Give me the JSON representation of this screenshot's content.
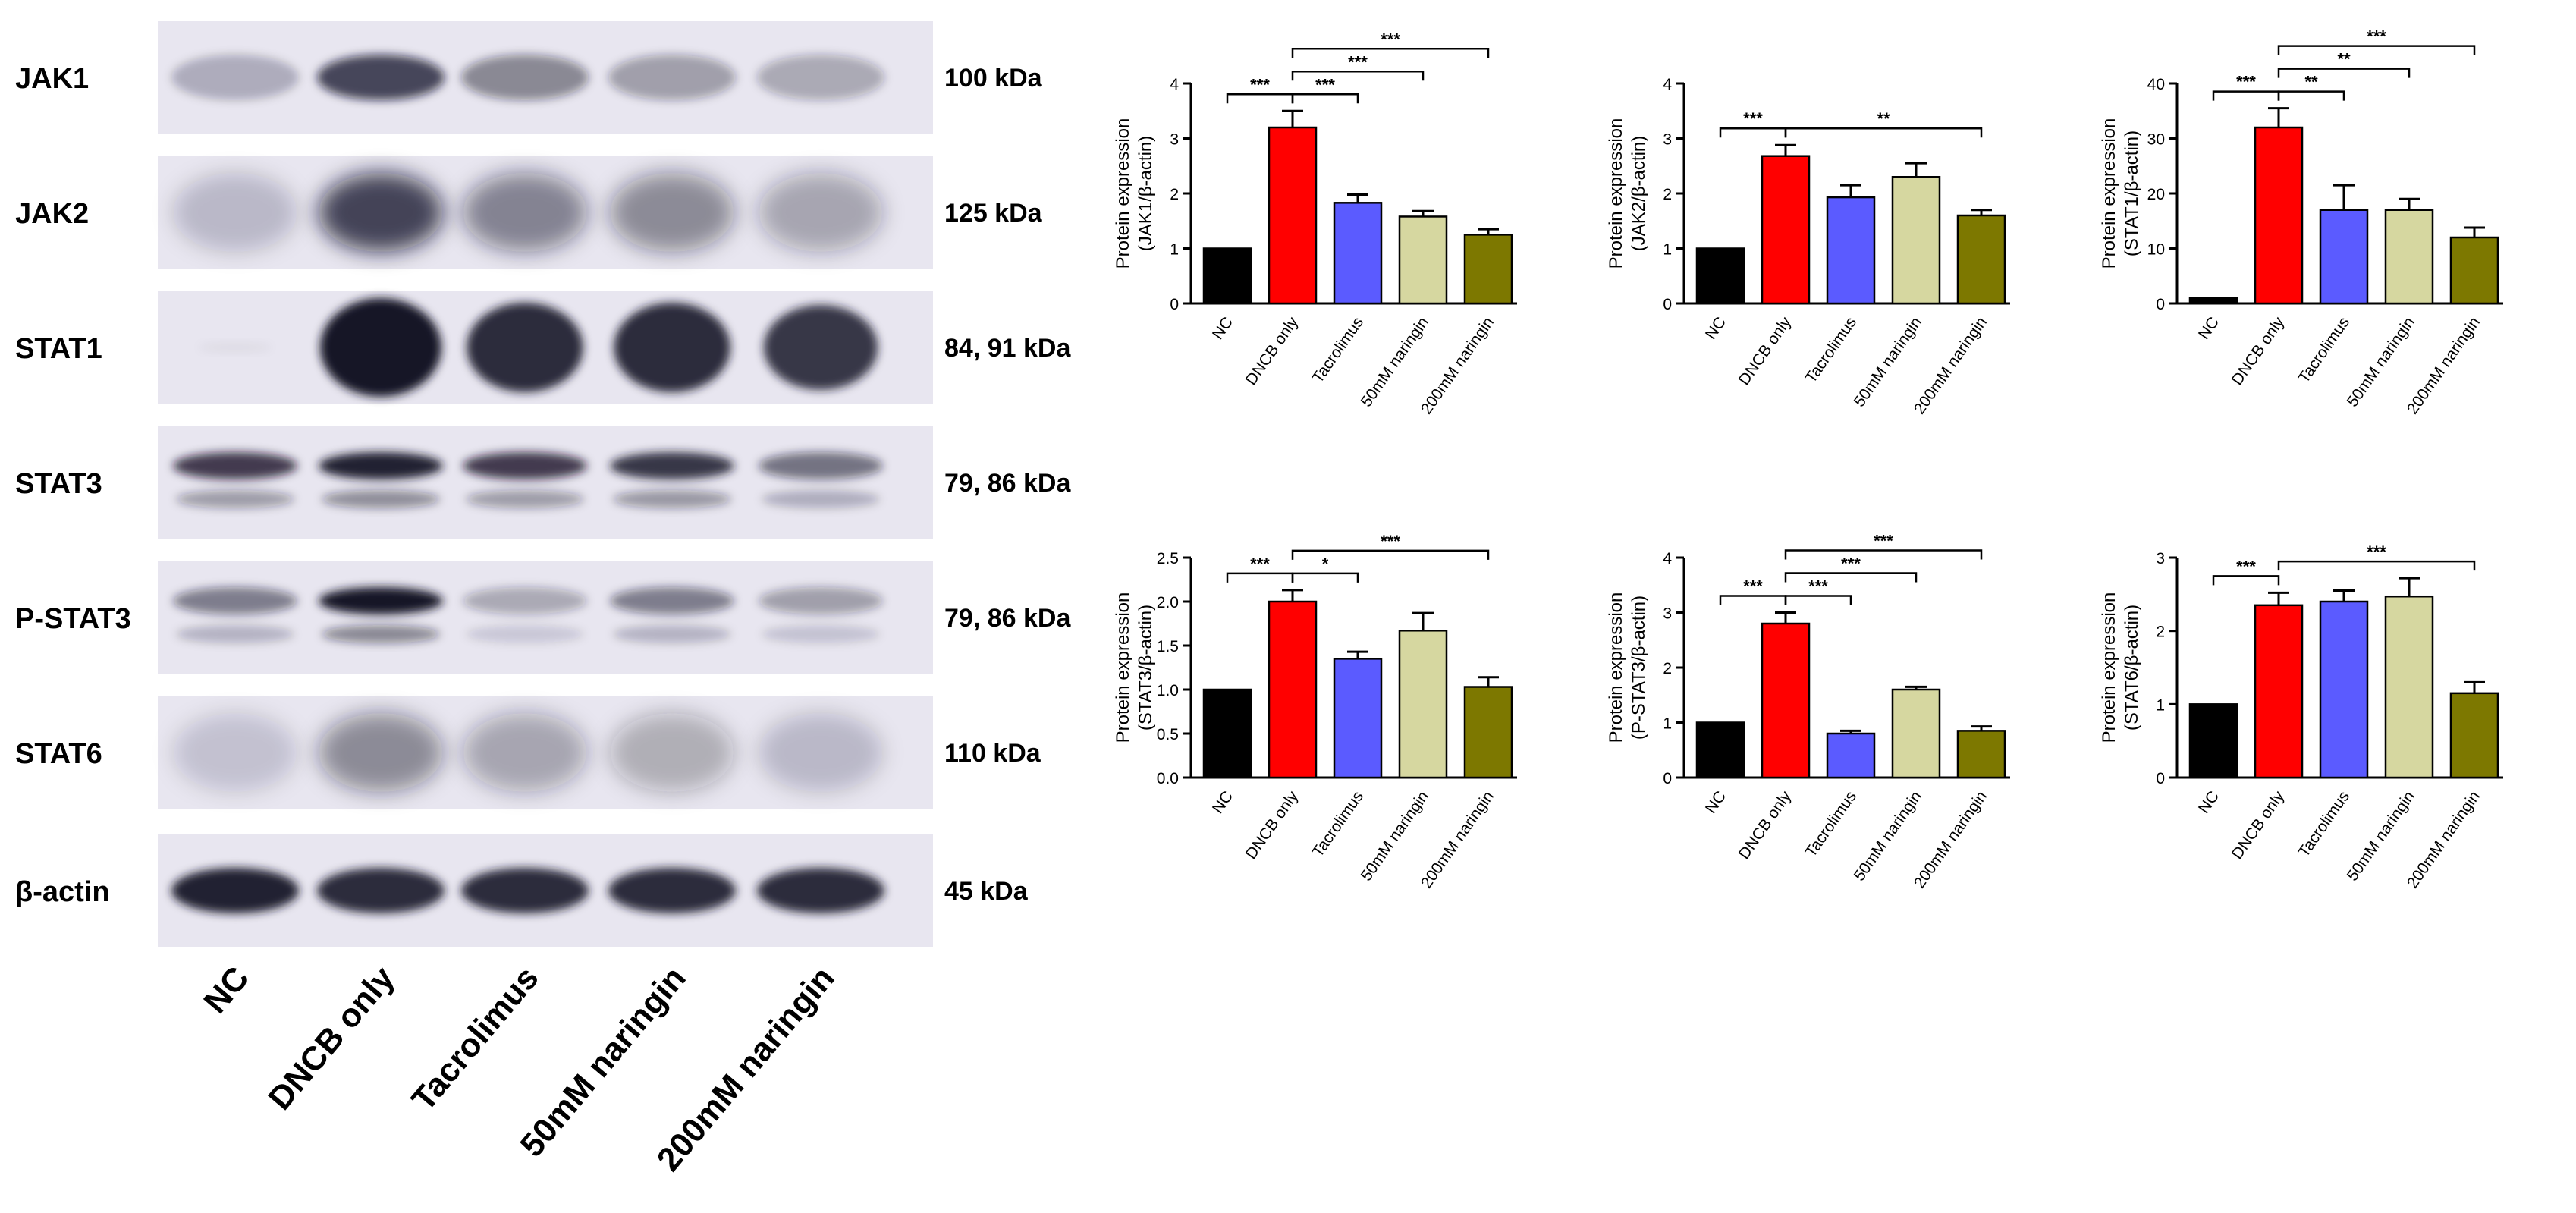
{
  "blot": {
    "lanes": [
      "NC",
      "DNCB only",
      "Tacrolimus",
      "50mM naringin",
      "200mM naringin"
    ],
    "rows": [
      {
        "name": "JAK1",
        "kda": "100 kDa",
        "intensity": [
          0.25,
          0.75,
          0.45,
          0.35,
          0.3
        ],
        "shape": "band"
      },
      {
        "name": "JAK2",
        "kda": "125 kDa",
        "intensity": [
          0.25,
          0.95,
          0.6,
          0.55,
          0.4
        ],
        "shape": "smear"
      },
      {
        "name": "STAT1",
        "kda": "84, 91 kDa",
        "intensity": [
          0.02,
          1.0,
          0.9,
          0.9,
          0.85
        ],
        "shape": "blob"
      },
      {
        "name": "STAT3",
        "kda": "79, 86 kDa",
        "intensity": [
          0.8,
          0.95,
          0.8,
          0.85,
          0.55
        ],
        "shape": "double"
      },
      {
        "name": "P-STAT3",
        "kda": "79, 86 kDa",
        "intensity": [
          0.5,
          1.0,
          0.3,
          0.5,
          0.35
        ],
        "shape": "double"
      },
      {
        "name": "STAT6",
        "kda": "110 kDa",
        "intensity": [
          0.2,
          0.55,
          0.4,
          0.35,
          0.25
        ],
        "shape": "smear"
      },
      {
        "name": "β-actin",
        "kda": "45 kDa",
        "intensity": [
          0.95,
          0.9,
          0.9,
          0.9,
          0.9
        ],
        "shape": "band"
      }
    ]
  },
  "chart_data": [
    {
      "type": "bar",
      "ylabel": "Protein expression",
      "ylabel2": "(JAK1/β-actin)",
      "categories": [
        "NC",
        "DNCB only",
        "Tacrolimus",
        "50mM naringin",
        "200mM naringin"
      ],
      "values": [
        1.0,
        3.2,
        1.83,
        1.58,
        1.25
      ],
      "errors": [
        0,
        0.3,
        0.15,
        0.1,
        0.1
      ],
      "ylim": [
        0,
        4
      ],
      "yticks": [
        "0",
        "1",
        "2",
        "3",
        "4"
      ],
      "significance": [
        {
          "from": 0,
          "to": 1,
          "label": "***"
        },
        {
          "from": 1,
          "to": 2,
          "label": "***"
        },
        {
          "from": 1,
          "to": 3,
          "label": "***"
        },
        {
          "from": 1,
          "to": 4,
          "label": "***"
        }
      ]
    },
    {
      "type": "bar",
      "ylabel": "Protein expression",
      "ylabel2": "(JAK2/β-actin)",
      "categories": [
        "NC",
        "DNCB only",
        "Tacrolimus",
        "50mM naringin",
        "200mM naringin"
      ],
      "values": [
        1.0,
        2.68,
        1.93,
        2.3,
        1.6
      ],
      "errors": [
        0,
        0.2,
        0.22,
        0.25,
        0.1
      ],
      "ylim": [
        0,
        4
      ],
      "yticks": [
        "0",
        "1",
        "2",
        "3",
        "4"
      ],
      "significance": [
        {
          "from": 0,
          "to": 1,
          "label": "***"
        },
        {
          "from": 1,
          "to": 4,
          "label": "**"
        }
      ]
    },
    {
      "type": "bar",
      "ylabel": "Protein expression",
      "ylabel2": "(STAT1/β-actin)",
      "categories": [
        "NC",
        "DNCB only",
        "Tacrolimus",
        "50mM naringin",
        "200mM naringin"
      ],
      "values": [
        1.0,
        32.0,
        17.0,
        17.0,
        12.0
      ],
      "errors": [
        0,
        3.5,
        4.5,
        2.0,
        1.8
      ],
      "ylim": [
        0,
        40
      ],
      "yticks": [
        "0",
        "10",
        "20",
        "30",
        "40"
      ],
      "significance": [
        {
          "from": 0,
          "to": 1,
          "label": "***"
        },
        {
          "from": 1,
          "to": 2,
          "label": "**"
        },
        {
          "from": 1,
          "to": 3,
          "label": "**"
        },
        {
          "from": 1,
          "to": 4,
          "label": "***"
        }
      ]
    },
    {
      "type": "bar",
      "ylabel": "Protein expression",
      "ylabel2": "(STAT3/β-actin)",
      "categories": [
        "NC",
        "DNCB only",
        "Tacrolimus",
        "50mM naringin",
        "200mM naringin"
      ],
      "values": [
        1.0,
        2.0,
        1.35,
        1.67,
        1.03
      ],
      "errors": [
        0,
        0.13,
        0.08,
        0.2,
        0.11
      ],
      "ylim": [
        0,
        2.5
      ],
      "yticks": [
        "0.0",
        "0.5",
        "1.0",
        "1.5",
        "2.0",
        "2.5"
      ],
      "significance": [
        {
          "from": 0,
          "to": 1,
          "label": "***"
        },
        {
          "from": 1,
          "to": 2,
          "label": "*"
        },
        {
          "from": 1,
          "to": 4,
          "label": "***"
        }
      ]
    },
    {
      "type": "bar",
      "ylabel": "Protein expression",
      "ylabel2": "(P-STAT3/β-actin)",
      "categories": [
        "NC",
        "DNCB only",
        "Tacrolimus",
        "50mM naringin",
        "200mM naringin"
      ],
      "values": [
        1.0,
        2.8,
        0.8,
        1.6,
        0.85
      ],
      "errors": [
        0,
        0.2,
        0.05,
        0.05,
        0.08
      ],
      "ylim": [
        0,
        4
      ],
      "yticks": [
        "0",
        "1",
        "2",
        "3",
        "4"
      ],
      "significance": [
        {
          "from": 0,
          "to": 1,
          "label": "***"
        },
        {
          "from": 1,
          "to": 2,
          "label": "***"
        },
        {
          "from": 1,
          "to": 3,
          "label": "***"
        },
        {
          "from": 1,
          "to": 4,
          "label": "***"
        }
      ]
    },
    {
      "type": "bar",
      "ylabel": "Protein expression",
      "ylabel2": "(STAT6/β-actin)",
      "categories": [
        "NC",
        "DNCB only",
        "Tacrolimus",
        "50mM naringin",
        "200mM naringin"
      ],
      "values": [
        1.0,
        2.35,
        2.4,
        2.47,
        1.15
      ],
      "errors": [
        0,
        0.17,
        0.15,
        0.25,
        0.15
      ],
      "ylim": [
        0,
        3
      ],
      "yticks": [
        "0",
        "1",
        "2",
        "3"
      ],
      "significance": [
        {
          "from": 0,
          "to": 1,
          "label": "***"
        },
        {
          "from": 1,
          "to": 4,
          "label": "***"
        }
      ]
    }
  ],
  "colors": {
    "bars": [
      "#000000",
      "#ff0000",
      "#5b5bff",
      "#d6d7a0",
      "#7d7800"
    ],
    "blot_bg": "#e8e6f0",
    "band": "#151428"
  }
}
